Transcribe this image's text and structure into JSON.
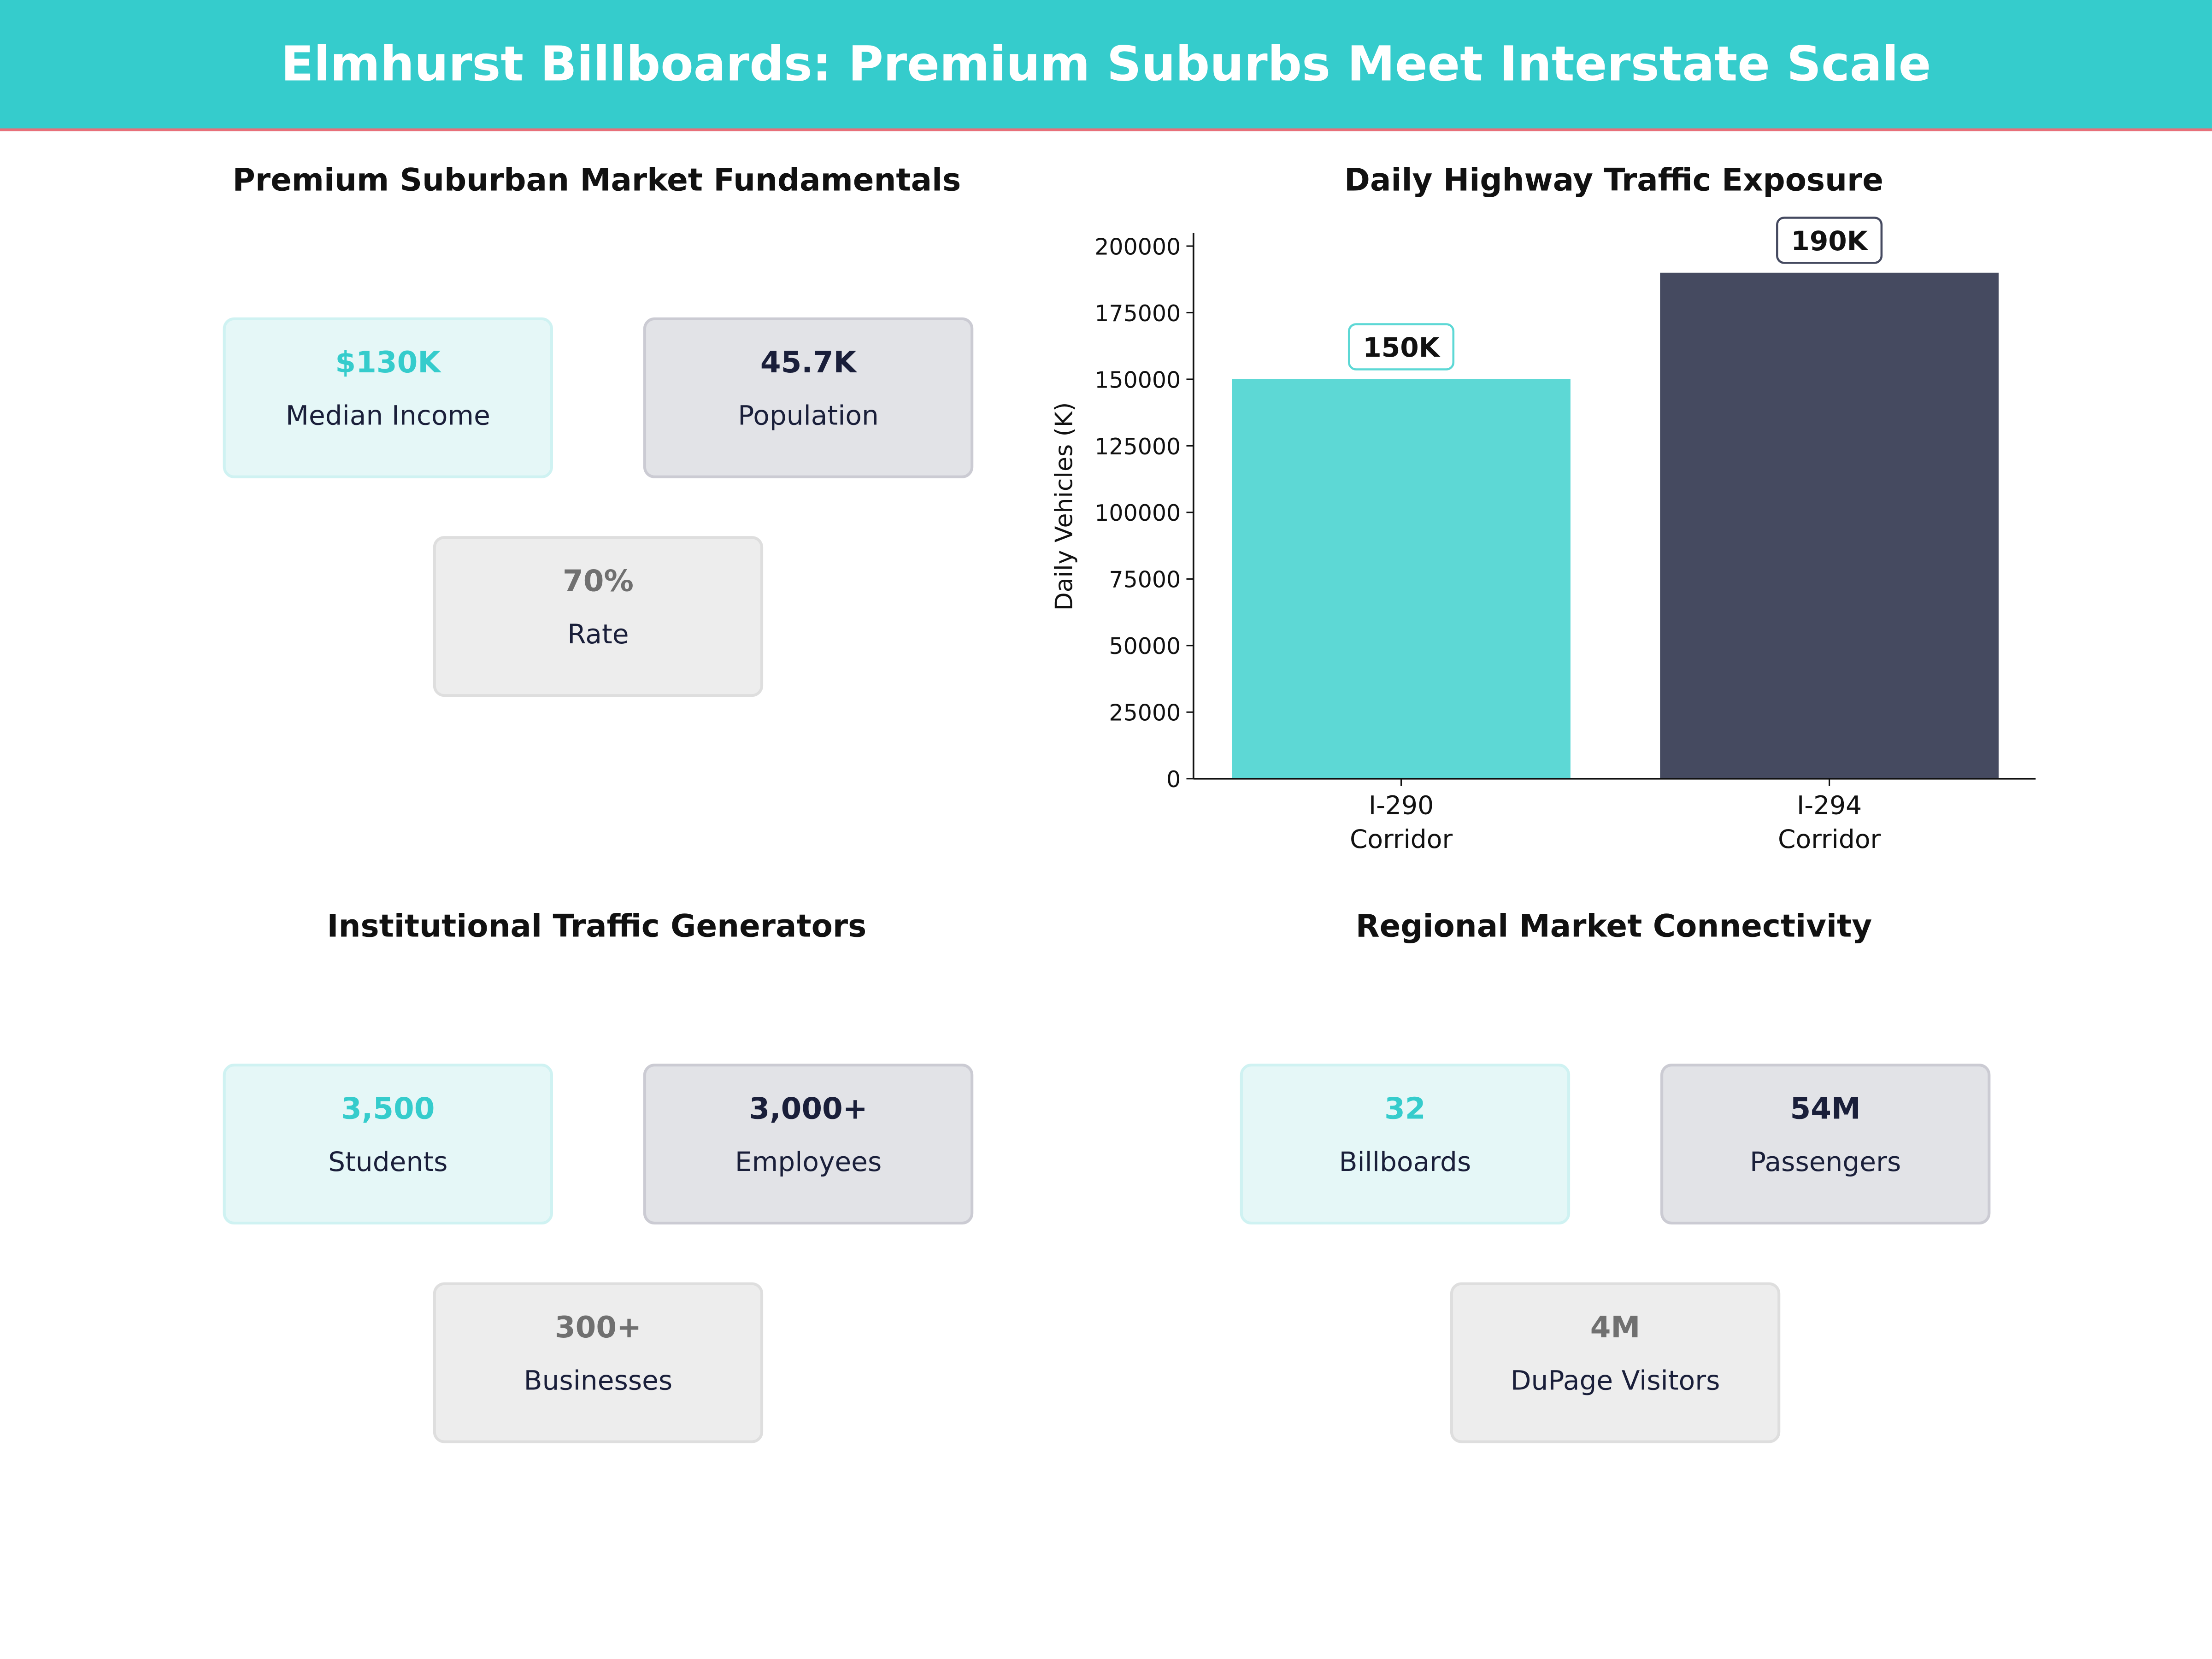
{
  "header": {
    "title": "Elmhurst Billboards: Premium Suburbs Meet Interstate Scale",
    "color": "#35CCCC",
    "accent_line": "#E8707A"
  },
  "panels": [
    {
      "title": "Premium Suburban Market Fundamentals",
      "cards": [
        {
          "value": "$130K",
          "label": "Median Income",
          "style": "teal"
        },
        {
          "value": "45.7K",
          "label": "Population",
          "style": "dark"
        },
        {
          "value": "70%",
          "label": "Rate",
          "style": "gray"
        }
      ]
    },
    {
      "title": "Institutional Traffic Generators",
      "cards": [
        {
          "value": "3,500",
          "label": "Students",
          "style": "teal"
        },
        {
          "value": "3,000+",
          "label": "Employees",
          "style": "dark"
        },
        {
          "value": "300+",
          "label": "Businesses",
          "style": "gray"
        }
      ]
    },
    {
      "title": "Regional Market Connectivity",
      "cards": [
        {
          "value": "32",
          "label": "Billboards",
          "style": "teal"
        },
        {
          "value": "54M",
          "label": "Passengers",
          "style": "dark"
        },
        {
          "value": "4M",
          "label": "DuPage Visitors",
          "style": "gray"
        }
      ]
    }
  ],
  "chart_data": {
    "type": "bar",
    "title": "Daily Highway Traffic Exposure",
    "categories": [
      "I-290\nCorridor",
      "I-294\nCorridor"
    ],
    "category_lines": [
      [
        "I-290",
        "Corridor"
      ],
      [
        "I-294",
        "Corridor"
      ]
    ],
    "values": [
      150000,
      190000
    ],
    "data_labels": [
      "150K",
      "190K"
    ],
    "colors": [
      "#5DD8D5",
      "#454A60"
    ],
    "xlabel": "",
    "ylabel": "Daily Vehicles (K)",
    "ylim": [
      0,
      205000
    ],
    "yticks": [
      0,
      25000,
      50000,
      75000,
      100000,
      125000,
      150000,
      175000,
      200000
    ],
    "grid": false
  }
}
